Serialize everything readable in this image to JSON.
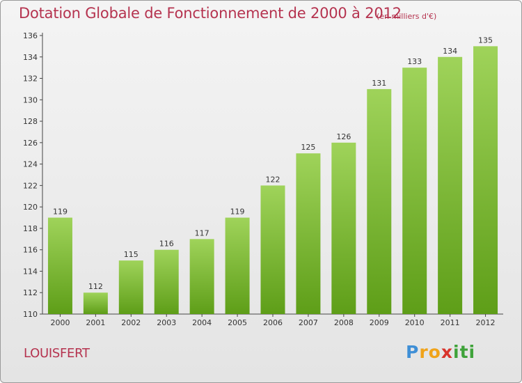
{
  "title": "Dotation Globale de Fonctionnement de 2000 à 2012",
  "unit_note": "(en milliers d'€)",
  "commune": "LOUISFERT",
  "logo": {
    "letters": [
      "P",
      "r",
      "o",
      "x",
      "i",
      "t",
      "i"
    ],
    "colors": [
      "#3f8fd6",
      "#f0a31a",
      "#f0a31a",
      "#d8342c",
      "#3fa33a",
      "#3fa33a",
      "#3fa33a"
    ]
  },
  "colors": {
    "title": "#b5334f",
    "bar_top": "#9fd35a",
    "bar_bottom": "#5e9e18",
    "axis_text": "#333333",
    "grid": "#d8d8d8"
  },
  "chart_data": {
    "type": "bar",
    "categories": [
      "2000",
      "2001",
      "2002",
      "2003",
      "2004",
      "2005",
      "2006",
      "2007",
      "2008",
      "2009",
      "2010",
      "2011",
      "2012"
    ],
    "values": [
      119,
      112,
      115,
      116,
      117,
      119,
      122,
      125,
      126,
      131,
      133,
      134,
      135
    ],
    "ylim": [
      110,
      136
    ],
    "yticks": [
      110,
      112,
      114,
      116,
      118,
      120,
      122,
      124,
      126,
      128,
      130,
      132,
      134,
      136
    ],
    "data_labels": true,
    "grid": false,
    "legend": "none"
  }
}
